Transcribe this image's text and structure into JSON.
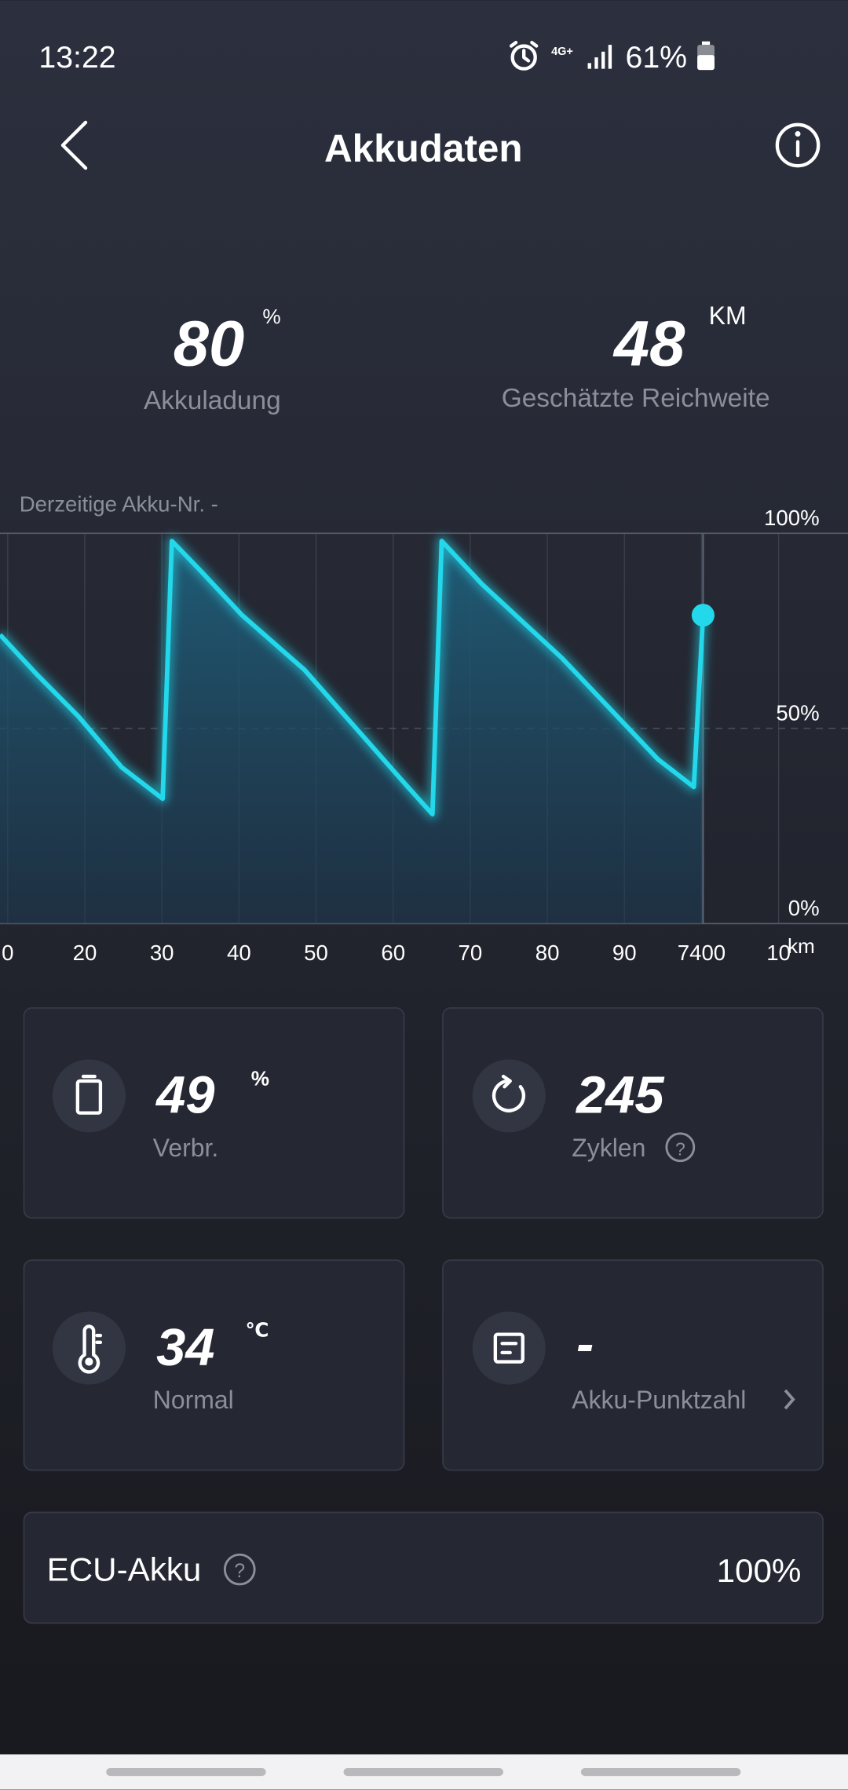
{
  "status_bar": {
    "time": "13:22",
    "network": "4G+",
    "battery": "61%"
  },
  "header": {
    "title": "Akkudaten"
  },
  "summary": [
    {
      "value": "80",
      "unit": "%",
      "label": "Akkuladung"
    },
    {
      "value": "48",
      "unit": "KM",
      "label": "Geschätzte Reichweite"
    }
  ],
  "chart_data": {
    "type": "line",
    "title": "Derzeitige Akku-Nr. -",
    "xlabel": "km",
    "color": "#22d8ea",
    "grid": true,
    "x": [
      7309,
      7313.7,
      7319.2,
      7324.8,
      7330.1,
      7331.3,
      7335.2,
      7340.4,
      7348.5,
      7361.9,
      7365.1,
      7366.3,
      7371.5,
      7381.9,
      7394.4,
      7399,
      7400.2
    ],
    "values": [
      74,
      64,
      53,
      40,
      32,
      98,
      90,
      79,
      65,
      35,
      28,
      98,
      87,
      68,
      42,
      35,
      79
    ],
    "xlim": [
      7309,
      7419
    ],
    "xticks": [
      {
        "value": 7310,
        "label": "0"
      },
      {
        "value": 7320,
        "label": "20"
      },
      {
        "value": 7330,
        "label": "30"
      },
      {
        "value": 7340,
        "label": "40"
      },
      {
        "value": 7350,
        "label": "50"
      },
      {
        "value": 7360,
        "label": "60"
      },
      {
        "value": 7370,
        "label": "70"
      },
      {
        "value": 7380,
        "label": "80"
      },
      {
        "value": 7390,
        "label": "90"
      },
      7400,
      {
        "value": 7410,
        "label": "10"
      }
    ],
    "ylim": [
      0,
      100
    ],
    "yticks": [
      {
        "value": 0,
        "label": "0%"
      },
      {
        "value": 50,
        "label": "50%"
      },
      {
        "value": 100,
        "label": "100%"
      }
    ]
  },
  "cards": [
    {
      "value": "49",
      "unit": "%",
      "label": "Verbr."
    },
    {
      "value": "245",
      "label": "Zyklen"
    },
    {
      "value": "34",
      "unit": "℃",
      "label": "Normal"
    },
    {
      "value": "-",
      "label": "Akku-Punktzahl"
    }
  ],
  "ecu": {
    "label": "ECU-Akku",
    "value": "100%"
  }
}
